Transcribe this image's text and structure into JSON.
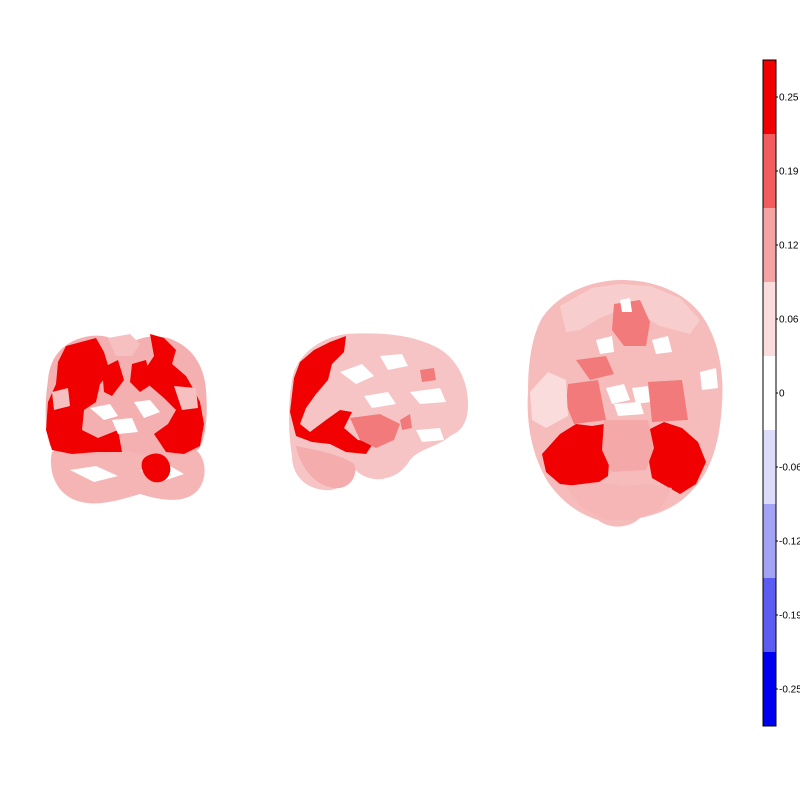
{
  "colorbar": {
    "ticks": [
      "0.25",
      "0.19",
      "0.12",
      "0.06",
      "0",
      "-0.06",
      "-0.12",
      "-0.19",
      "-0.25"
    ],
    "colors": [
      "#f00000",
      "#f25c5c",
      "#f5a3a3",
      "#fadcdc",
      "#ffffff",
      "#dcdcfa",
      "#a3a3f5",
      "#5c5cf2",
      "#0000f0"
    ]
  },
  "views": [
    {
      "name": "coronal-view"
    },
    {
      "name": "sagittal-view"
    },
    {
      "name": "axial-view"
    }
  ]
}
